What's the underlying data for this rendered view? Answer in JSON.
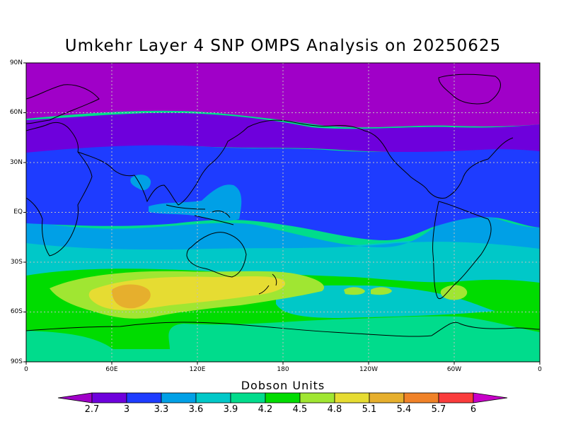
{
  "title": "Umkehr Layer 4 SNP OMPS Analysis on 20250625",
  "colorbar": {
    "title": "Dobson Units",
    "labels": [
      "2.7",
      "3",
      "3.3",
      "3.6",
      "3.9",
      "4.2",
      "4.5",
      "4.8",
      "5.1",
      "5.4",
      "5.7",
      "6"
    ],
    "colors": [
      "#a000c8",
      "#6e00dc",
      "#1e3cff",
      "#00a0e6",
      "#00c8c8",
      "#00dc8c",
      "#00dc00",
      "#a0e632",
      "#e6dc32",
      "#e6af2d",
      "#f08228",
      "#fa3c3c",
      "#f00082",
      "#c800c8"
    ]
  },
  "axes": {
    "lat_labels": [
      "90N",
      "60N",
      "30N",
      "EQ",
      "30S",
      "60S",
      "90S"
    ],
    "lon_labels": [
      "0",
      "60E",
      "120E",
      "180",
      "120W",
      "60W",
      "0"
    ]
  },
  "map": {
    "field": "Umkehr Layer 4 ozone",
    "unit": "Dobson Units",
    "date": "20250625"
  }
}
